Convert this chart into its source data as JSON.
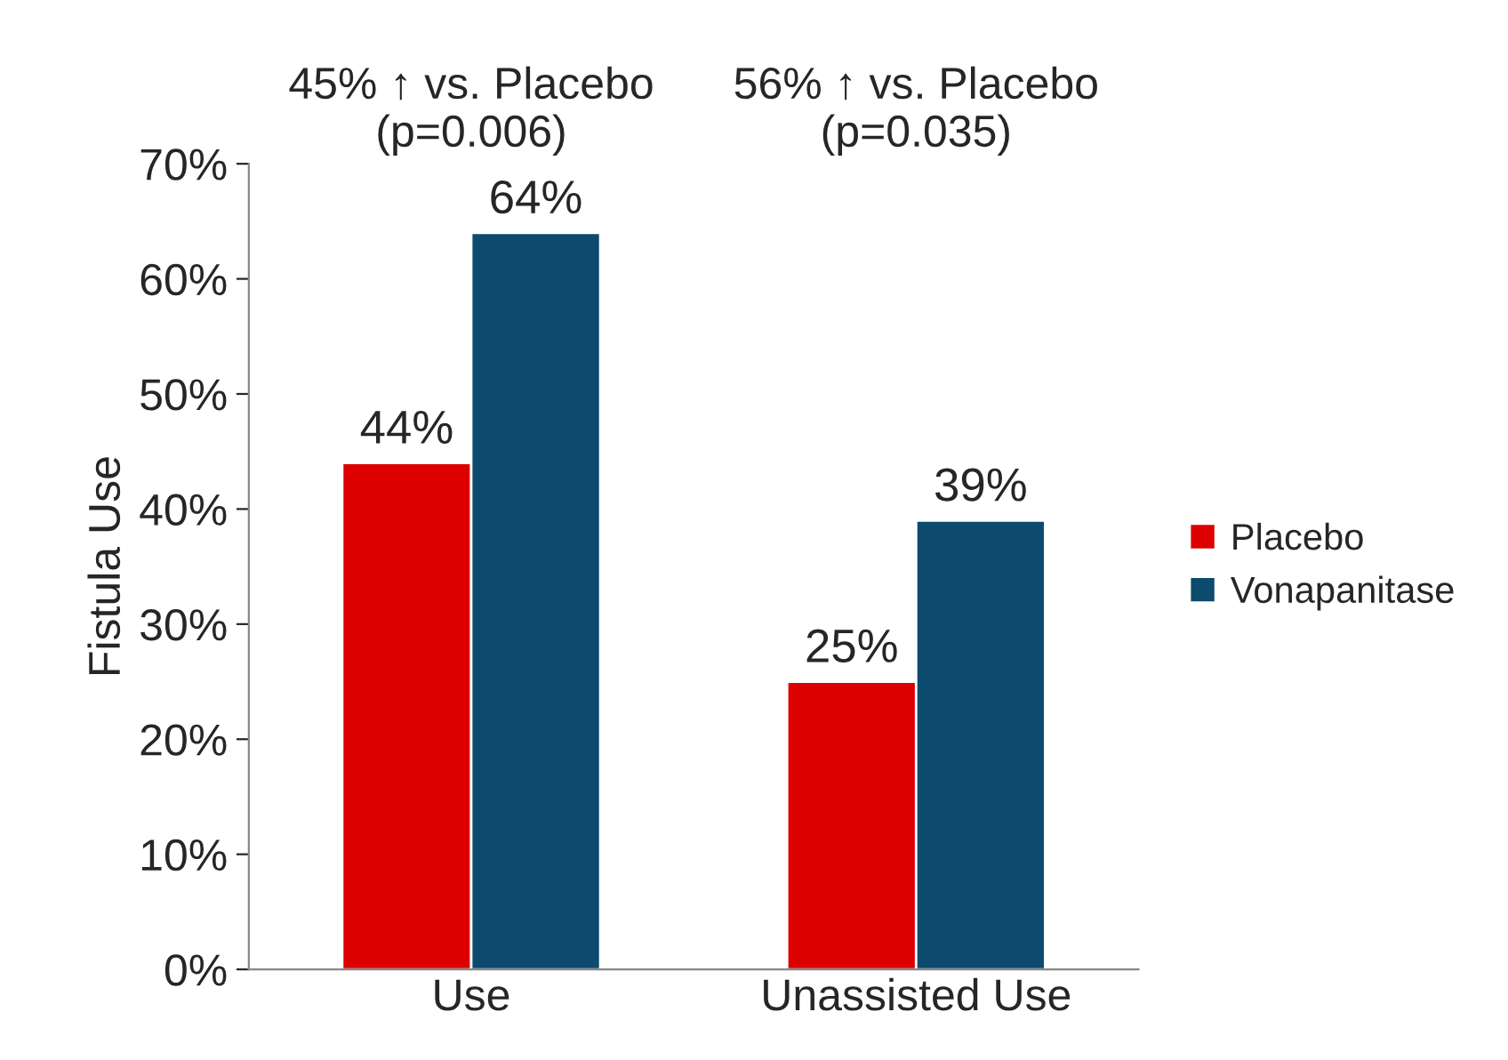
{
  "chart_data": {
    "type": "bar",
    "ylabel": "Fistula Use",
    "categories": [
      "Use",
      "Unassisted Use"
    ],
    "series": [
      {
        "name": "Placebo",
        "color": "#dc0000",
        "values": [
          44,
          25
        ]
      },
      {
        "name": "Vonapanitase",
        "color": "#0c4a6e",
        "values": [
          64,
          39
        ]
      }
    ],
    "value_labels": [
      [
        "44%",
        "25%"
      ],
      [
        "64%",
        "39%"
      ]
    ],
    "annotations": [
      "45% ↑ vs. Placebo\n(p=0.006)",
      "56% ↑ vs. Placebo\n(p=0.035)"
    ],
    "ylim": [
      0,
      70
    ],
    "yticks": [
      {
        "value": 0,
        "label": "0%"
      },
      {
        "value": 10,
        "label": "10%"
      },
      {
        "value": 20,
        "label": "20%"
      },
      {
        "value": 30,
        "label": "30%"
      },
      {
        "value": 40,
        "label": "40%"
      },
      {
        "value": 50,
        "label": "50%"
      },
      {
        "value": 60,
        "label": "60%"
      },
      {
        "value": 70,
        "label": "70%"
      }
    ],
    "grid": false,
    "legend": "right"
  }
}
